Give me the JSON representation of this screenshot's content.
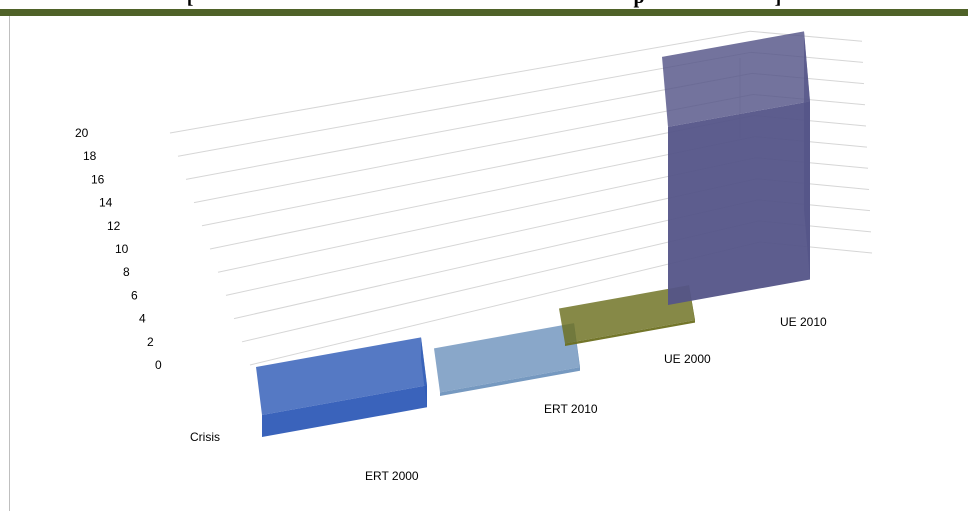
{
  "header": {
    "title_fragment": "[",
    "title_fragment_end": "p",
    "title_fragment_close": "]",
    "band_color": "#4f6228"
  },
  "chart_data": {
    "type": "bar",
    "style": "3d-column",
    "categories": [
      "ERT 2000",
      "ERT 2010",
      "UE 2000",
      "UE 2010"
    ],
    "series": [
      {
        "name": "Crisis",
        "values": [
          1.8,
          0.3,
          0.2,
          14.6
        ],
        "colors": [
          "#2f5bb7",
          "#6f94bd",
          "#6b6f1f",
          "#545488"
        ]
      }
    ],
    "y_ticks": [
      "0",
      "2",
      "4",
      "6",
      "8",
      "10",
      "12",
      "14",
      "16",
      "18",
      "20"
    ],
    "ylim": [
      0,
      20
    ],
    "grid": true,
    "legend": "none",
    "title": "",
    "xlabel": "",
    "ylabel": ""
  }
}
